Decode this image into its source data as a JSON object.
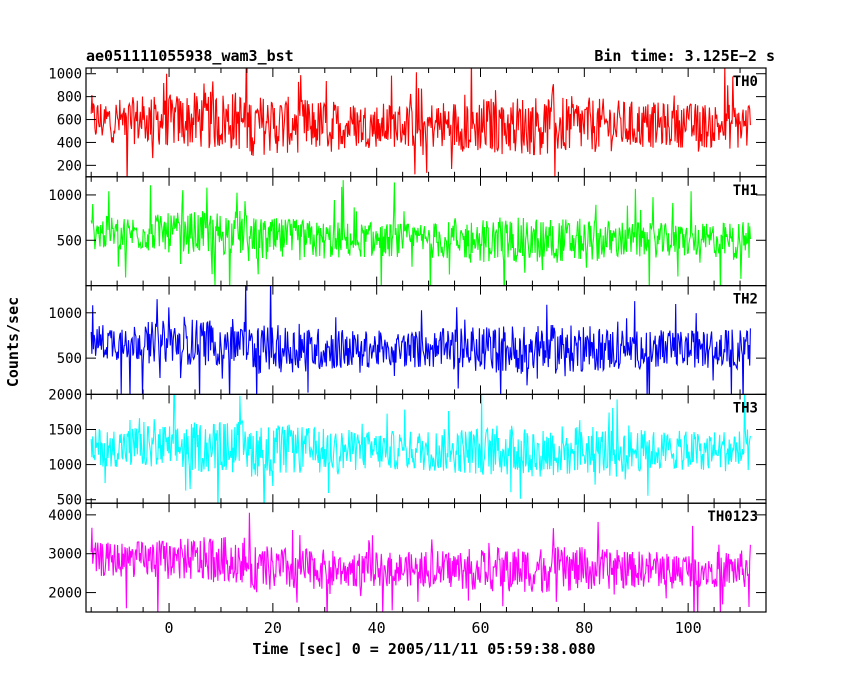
{
  "chart_data": {
    "type": "line",
    "title": "ae051111055938_wam3_bst",
    "bin_time_label": "Bin time: 3.125E−2 s",
    "xlabel": "Time [sec] 0 = 2005/11/11 05:59:38.080",
    "ylabel": "Counts/sec",
    "xlim": [
      -16,
      115
    ],
    "x_ticks": [
      0,
      20,
      40,
      60,
      80,
      100
    ],
    "x_minor_step": 5,
    "x_data_range": [
      -15,
      112
    ],
    "grid": false,
    "legend": "none",
    "series": [
      {
        "name": "TH0",
        "color": "#ff0000",
        "ylim": [
          100,
          1050
        ],
        "yticks": [
          200,
          400,
          600,
          800,
          1000
        ],
        "ytick_labels": [
          "200",
          "400",
          "600",
          "800",
          "1000"
        ],
        "baseline": 550,
        "baseline_start": 590,
        "noise": 230,
        "spike": 480
      },
      {
        "name": "TH1",
        "color": "#00ff00",
        "ylim": [
          0,
          1200
        ],
        "yticks": [
          500,
          1000
        ],
        "ytick_labels": [
          "500",
          "1000"
        ],
        "baseline": 500,
        "baseline_start": 580,
        "noise": 220,
        "spike": 620
      },
      {
        "name": "TH2",
        "color": "#0000ff",
        "ylim": [
          100,
          1300
        ],
        "yticks": [
          500,
          1000
        ],
        "ytick_labels": [
          "500",
          "1000"
        ],
        "baseline": 600,
        "baseline_start": 680,
        "noise": 240,
        "spike": 620
      },
      {
        "name": "TH3",
        "color": "#00ffff",
        "ylim": [
          450,
          2000
        ],
        "yticks": [
          500,
          1000,
          1500,
          2000
        ],
        "ytick_labels": [
          "500",
          "1000",
          "1500",
          "2000"
        ],
        "baseline": 1200,
        "baseline_start": 1250,
        "noise": 330,
        "spike": 700
      },
      {
        "name": "TH0123",
        "color": "#ff00ff",
        "ylim": [
          1500,
          4300
        ],
        "yticks": [
          2000,
          3000,
          4000
        ],
        "ytick_labels": [
          "2000",
          "3000",
          "4000"
        ],
        "baseline": 2600,
        "baseline_start": 2850,
        "noise": 520,
        "spike": 1300
      }
    ]
  }
}
